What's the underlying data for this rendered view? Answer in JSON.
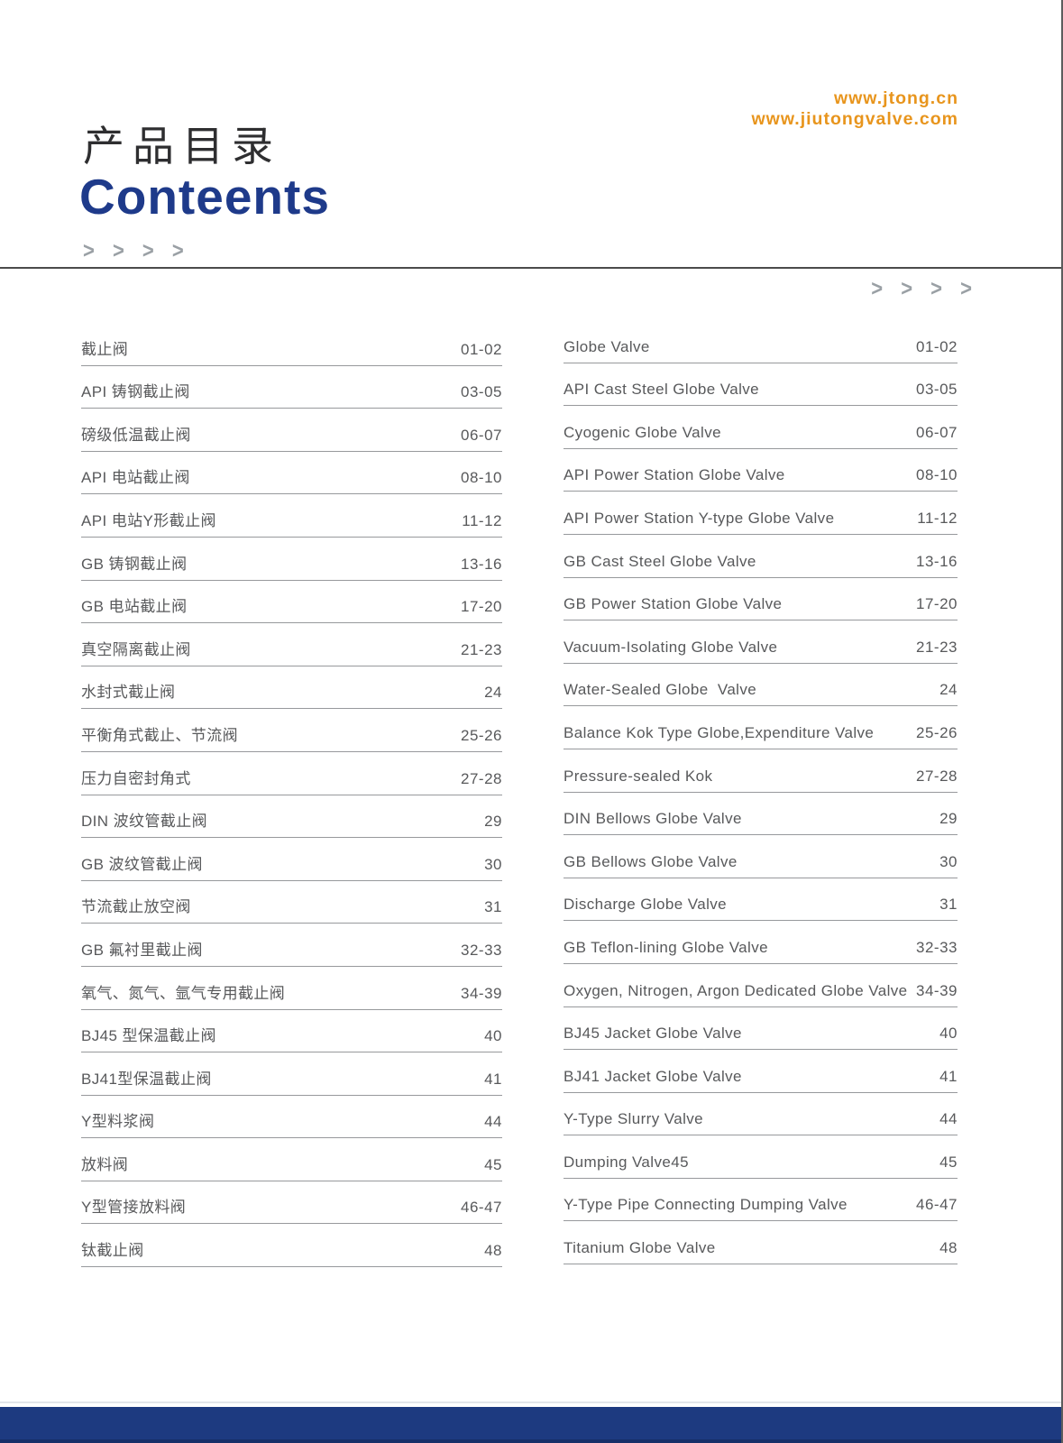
{
  "header": {
    "urls": [
      "www.jtong.cn",
      "www.jiutongvalve.com"
    ],
    "title_zh": "产品目录",
    "title_en": "Conteents",
    "chevron_glyph": "> > > >"
  },
  "toc": {
    "left": [
      {
        "label": "截止阀",
        "pages": "01-02"
      },
      {
        "label": "API 铸钢截止阀",
        "pages": "03-05"
      },
      {
        "label": "磅级低温截止阀",
        "pages": "06-07"
      },
      {
        "label": "API 电站截止阀",
        "pages": "08-10"
      },
      {
        "label": "API 电站Y形截止阀",
        "pages": "11-12"
      },
      {
        "label": "GB 铸钢截止阀",
        "pages": "13-16"
      },
      {
        "label": "GB 电站截止阀",
        "pages": "17-20"
      },
      {
        "label": "真空隔离截止阀",
        "pages": "21-23"
      },
      {
        "label": "水封式截止阀",
        "pages": "24"
      },
      {
        "label": "平衡角式截止、节流阀",
        "pages": "25-26"
      },
      {
        "label": "压力自密封角式",
        "pages": "27-28"
      },
      {
        "label": "DIN 波纹管截止阀",
        "pages": "29"
      },
      {
        "label": "GB 波纹管截止阀",
        "pages": "30"
      },
      {
        "label": "节流截止放空阀",
        "pages": "31"
      },
      {
        "label": "GB 氟衬里截止阀",
        "pages": "32-33"
      },
      {
        "label": "氧气、氮气、氩气专用截止阀",
        "pages": "34-39"
      },
      {
        "label": "BJ45 型保温截止阀",
        "pages": "40"
      },
      {
        "label": "BJ41型保温截止阀",
        "pages": "41"
      },
      {
        "label": "Y型料浆阀",
        "pages": "44"
      },
      {
        "label": "放料阀",
        "pages": "45"
      },
      {
        "label": "Y型管接放料阀",
        "pages": "46-47"
      },
      {
        "label": "钛截止阀",
        "pages": "48"
      }
    ],
    "right": [
      {
        "label": "Globe Valve",
        "pages": "01-02"
      },
      {
        "label": "API Cast Steel Globe Valve",
        "pages": "03-05"
      },
      {
        "label": "Cyogenic Globe Valve",
        "pages": "06-07"
      },
      {
        "label": "API Power Station Globe Valve",
        "pages": "08-10"
      },
      {
        "label": "API Power Station Y-type Globe Valve",
        "pages": "11-12"
      },
      {
        "label": "GB Cast Steel Globe Valve",
        "pages": "13-16"
      },
      {
        "label": "GB Power Station Globe Valve",
        "pages": "17-20"
      },
      {
        "label": "Vacuum-Isolating Globe Valve",
        "pages": "21-23"
      },
      {
        "label": "Water-Sealed Globe  Valve",
        "pages": "24"
      },
      {
        "label": "Balance Kok Type Globe,Expenditure Valve",
        "pages": "25-26"
      },
      {
        "label": "Pressure-sealed Kok",
        "pages": "27-28"
      },
      {
        "label": "DIN Bellows Globe Valve",
        "pages": "29"
      },
      {
        "label": "GB Bellows Globe Valve",
        "pages": "30"
      },
      {
        "label": "Discharge Globe Valve",
        "pages": "31"
      },
      {
        "label": "GB Teflon-lining Globe Valve",
        "pages": "32-33"
      },
      {
        "label": "Oxygen, Nitrogen, Argon Dedicated Globe Valve",
        "pages": "34-39"
      },
      {
        "label": "BJ45 Jacket Globe Valve",
        "pages": "40"
      },
      {
        "label": "BJ41 Jacket Globe Valve",
        "pages": "41"
      },
      {
        "label": "Y-Type Slurry Valve",
        "pages": "44"
      },
      {
        "label": "Dumping Valve45",
        "pages": "45"
      },
      {
        "label": "Y-Type Pipe Connecting Dumping Valve",
        "pages": "46-47"
      },
      {
        "label": "Titanium Globe Valve",
        "pages": "48"
      }
    ]
  },
  "colors": {
    "accent_orange": "#e8951d",
    "brand_blue": "#1e3a8a",
    "footer_blue": "#1d3a80",
    "footer_blue_dark": "#172f68",
    "text_gray": "#58595b",
    "rule_gray": "#97999c"
  }
}
